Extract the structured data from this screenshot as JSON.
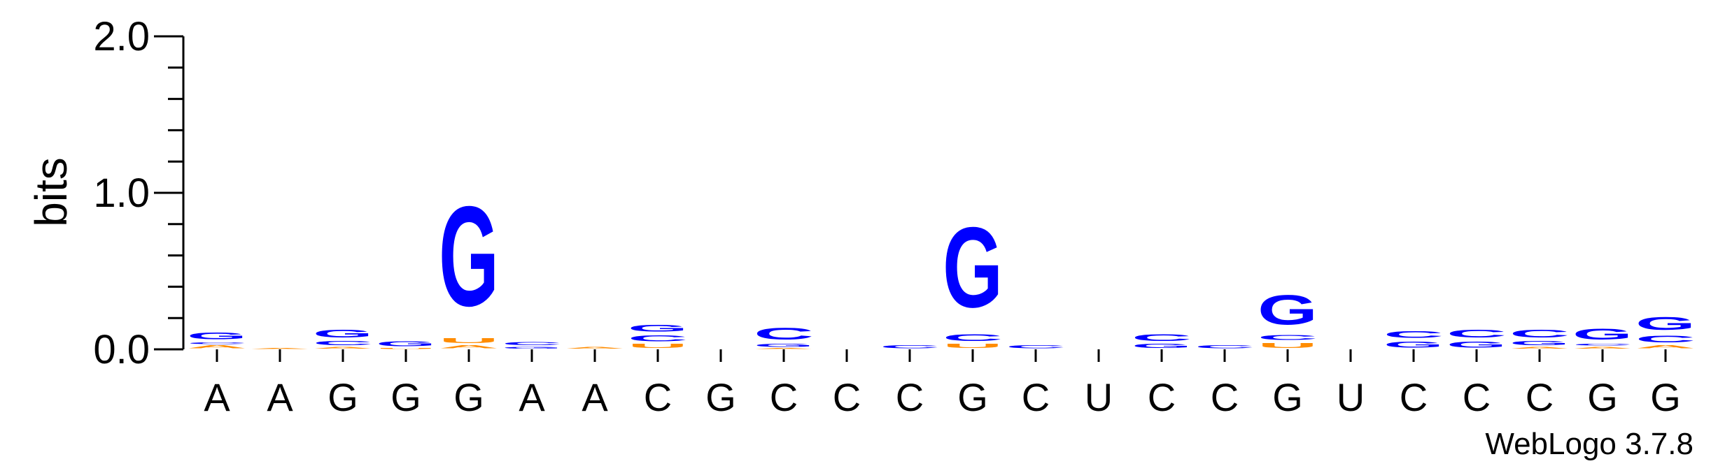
{
  "chart_data": {
    "type": "sequence-logo",
    "ylabel": "bits",
    "ylim": [
      0,
      2.0
    ],
    "yticks": [
      "0.0",
      "1.0",
      "2.0"
    ],
    "positions": [
      "A",
      "A",
      "G",
      "G",
      "G",
      "A",
      "A",
      "C",
      "G",
      "C",
      "C",
      "C",
      "G",
      "C",
      "U",
      "C",
      "C",
      "G",
      "U",
      "C",
      "C",
      "C",
      "G",
      "G"
    ],
    "stacks": [
      [
        {
          "letter": "A",
          "bits": 0.03
        },
        {
          "letter": "C",
          "bits": 0.02
        },
        {
          "letter": "G",
          "bits": 0.07
        }
      ],
      [
        {
          "letter": "A",
          "bits": 0.01
        }
      ],
      [
        {
          "letter": "A",
          "bits": 0.02
        },
        {
          "letter": "C",
          "bits": 0.04
        },
        {
          "letter": "G",
          "bits": 0.08
        }
      ],
      [
        {
          "letter": "U",
          "bits": 0.01
        },
        {
          "letter": "G",
          "bits": 0.05
        }
      ],
      [
        {
          "letter": "A",
          "bits": 0.03
        },
        {
          "letter": "U",
          "bits": 0.05
        },
        {
          "letter": "G",
          "bits": 1.02
        }
      ],
      [
        {
          "letter": "G",
          "bits": 0.02
        },
        {
          "letter": "C",
          "bits": 0.03
        }
      ],
      [
        {
          "letter": "A",
          "bits": 0.02
        }
      ],
      [
        {
          "letter": "U",
          "bits": 0.04
        },
        {
          "letter": "C",
          "bits": 0.06
        },
        {
          "letter": "G",
          "bits": 0.07
        }
      ],
      [],
      [
        {
          "letter": "A",
          "bits": 0.01
        },
        {
          "letter": "G",
          "bits": 0.03
        },
        {
          "letter": "C",
          "bits": 0.12
        }
      ],
      [],
      [
        {
          "letter": "C",
          "bits": 0.03
        }
      ],
      [
        {
          "letter": "U",
          "bits": 0.04
        },
        {
          "letter": "C",
          "bits": 0.07
        },
        {
          "letter": "G",
          "bits": 0.82
        }
      ],
      [
        {
          "letter": "C",
          "bits": 0.03
        }
      ],
      [],
      [
        {
          "letter": "G",
          "bits": 0.04
        },
        {
          "letter": "C",
          "bits": 0.07
        }
      ],
      [
        {
          "letter": "C",
          "bits": 0.03
        }
      ],
      [
        {
          "letter": "U",
          "bits": 0.05
        },
        {
          "letter": "C",
          "bits": 0.05
        },
        {
          "letter": "G",
          "bits": 0.3
        }
      ],
      [],
      [
        {
          "letter": "G",
          "bits": 0.06
        },
        {
          "letter": "C",
          "bits": 0.07
        }
      ],
      [
        {
          "letter": "G",
          "bits": 0.06
        },
        {
          "letter": "C",
          "bits": 0.08
        }
      ],
      [
        {
          "letter": "A",
          "bits": 0.02
        },
        {
          "letter": "G",
          "bits": 0.04
        },
        {
          "letter": "C",
          "bits": 0.08
        }
      ],
      [
        {
          "letter": "A",
          "bits": 0.02
        },
        {
          "letter": "C",
          "bits": 0.02
        },
        {
          "letter": "G",
          "bits": 0.11
        }
      ],
      [
        {
          "letter": "A",
          "bits": 0.03
        },
        {
          "letter": "C",
          "bits": 0.07
        },
        {
          "letter": "G",
          "bits": 0.13
        }
      ]
    ],
    "colors": {
      "A": "#FF8C00",
      "C": "#0000FF",
      "G": "#0000FF",
      "U": "#FF8C00"
    },
    "grid": false,
    "legend": "none",
    "credit": "WebLogo 3.7.8"
  }
}
